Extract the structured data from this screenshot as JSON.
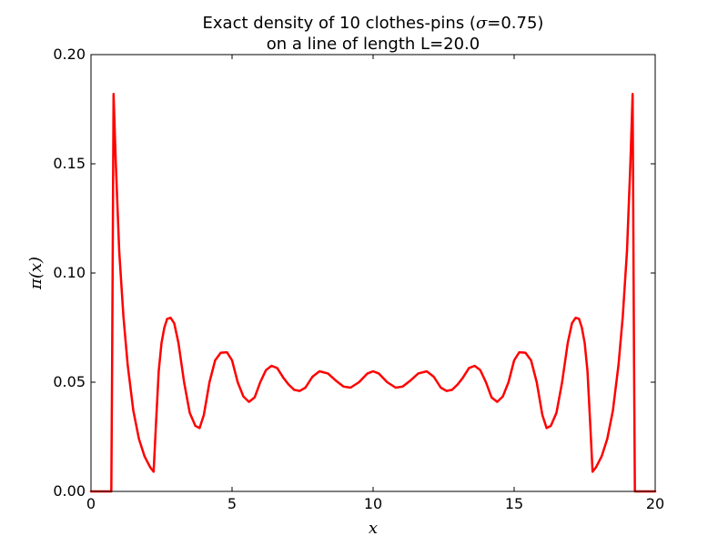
{
  "chart_data": {
    "type": "line",
    "title_line1_prefix": "Exact density of 10 clothes-pins (",
    "title_symbol": "σ",
    "title_line1_suffix": "=0.75)",
    "title_line2": "on a line of length L=20.0",
    "xlabel": "x",
    "ylabel": "π(x)",
    "xlim": [
      0,
      20
    ],
    "ylim": [
      0,
      0.2
    ],
    "xticks": [
      0,
      5,
      10,
      15,
      20
    ],
    "xtick_labels": [
      "0",
      "5",
      "10",
      "15",
      "20"
    ],
    "yticks": [
      0,
      0.05,
      0.1,
      0.15,
      0.2
    ],
    "ytick_labels": [
      "0.00",
      "0.05",
      "0.10",
      "0.15",
      "0.20"
    ],
    "grid": false,
    "series": [
      {
        "color": "#ff0000",
        "x": [
          0,
          0.72,
          0.75,
          0.8,
          0.88,
          1.0,
          1.15,
          1.3,
          1.5,
          1.7,
          1.9,
          2.1,
          2.22,
          2.3,
          2.4,
          2.5,
          2.6,
          2.7,
          2.82,
          2.95,
          3.1,
          3.3,
          3.5,
          3.7,
          3.85,
          4.0,
          4.2,
          4.4,
          4.6,
          4.82,
          5.0,
          5.2,
          5.4,
          5.6,
          5.8,
          6.0,
          6.2,
          6.4,
          6.6,
          6.82,
          7.0,
          7.2,
          7.4,
          7.6,
          7.85,
          8.1,
          8.4,
          8.7,
          8.95,
          9.2,
          9.5,
          9.8,
          10.0,
          10.2,
          10.5,
          10.8,
          11.05,
          11.3,
          11.6,
          11.9,
          12.15,
          12.4,
          12.6,
          12.8,
          13.0,
          13.18,
          13.4,
          13.6,
          13.8,
          14.0,
          14.2,
          14.4,
          14.6,
          14.8,
          15.0,
          15.18,
          15.4,
          15.6,
          15.8,
          16.0,
          16.15,
          16.3,
          16.5,
          16.7,
          16.9,
          17.05,
          17.18,
          17.3,
          17.4,
          17.5,
          17.6,
          17.7,
          17.78,
          17.9,
          18.1,
          18.3,
          18.5,
          18.7,
          18.85,
          19.0,
          19.12,
          19.2,
          19.25,
          19.28,
          20.0
        ],
        "y": [
          0,
          0,
          0.06,
          0.182,
          0.15,
          0.11,
          0.08,
          0.058,
          0.037,
          0.024,
          0.016,
          0.011,
          0.009,
          0.03,
          0.055,
          0.068,
          0.075,
          0.079,
          0.0795,
          0.077,
          0.068,
          0.05,
          0.036,
          0.03,
          0.029,
          0.035,
          0.05,
          0.06,
          0.0635,
          0.0637,
          0.06,
          0.05,
          0.0435,
          0.041,
          0.043,
          0.05,
          0.0555,
          0.0575,
          0.0565,
          0.052,
          0.049,
          0.0465,
          0.046,
          0.0475,
          0.0525,
          0.055,
          0.054,
          0.0505,
          0.048,
          0.0475,
          0.05,
          0.054,
          0.055,
          0.054,
          0.05,
          0.0475,
          0.048,
          0.0505,
          0.054,
          0.055,
          0.0525,
          0.0475,
          0.046,
          0.0465,
          0.049,
          0.052,
          0.0565,
          0.0575,
          0.0555,
          0.05,
          0.043,
          0.041,
          0.0435,
          0.05,
          0.06,
          0.0637,
          0.0635,
          0.06,
          0.05,
          0.035,
          0.029,
          0.03,
          0.036,
          0.05,
          0.068,
          0.077,
          0.0795,
          0.079,
          0.075,
          0.068,
          0.055,
          0.03,
          0.009,
          0.011,
          0.016,
          0.024,
          0.037,
          0.058,
          0.08,
          0.11,
          0.15,
          0.182,
          0.06,
          0,
          0
        ]
      }
    ]
  }
}
